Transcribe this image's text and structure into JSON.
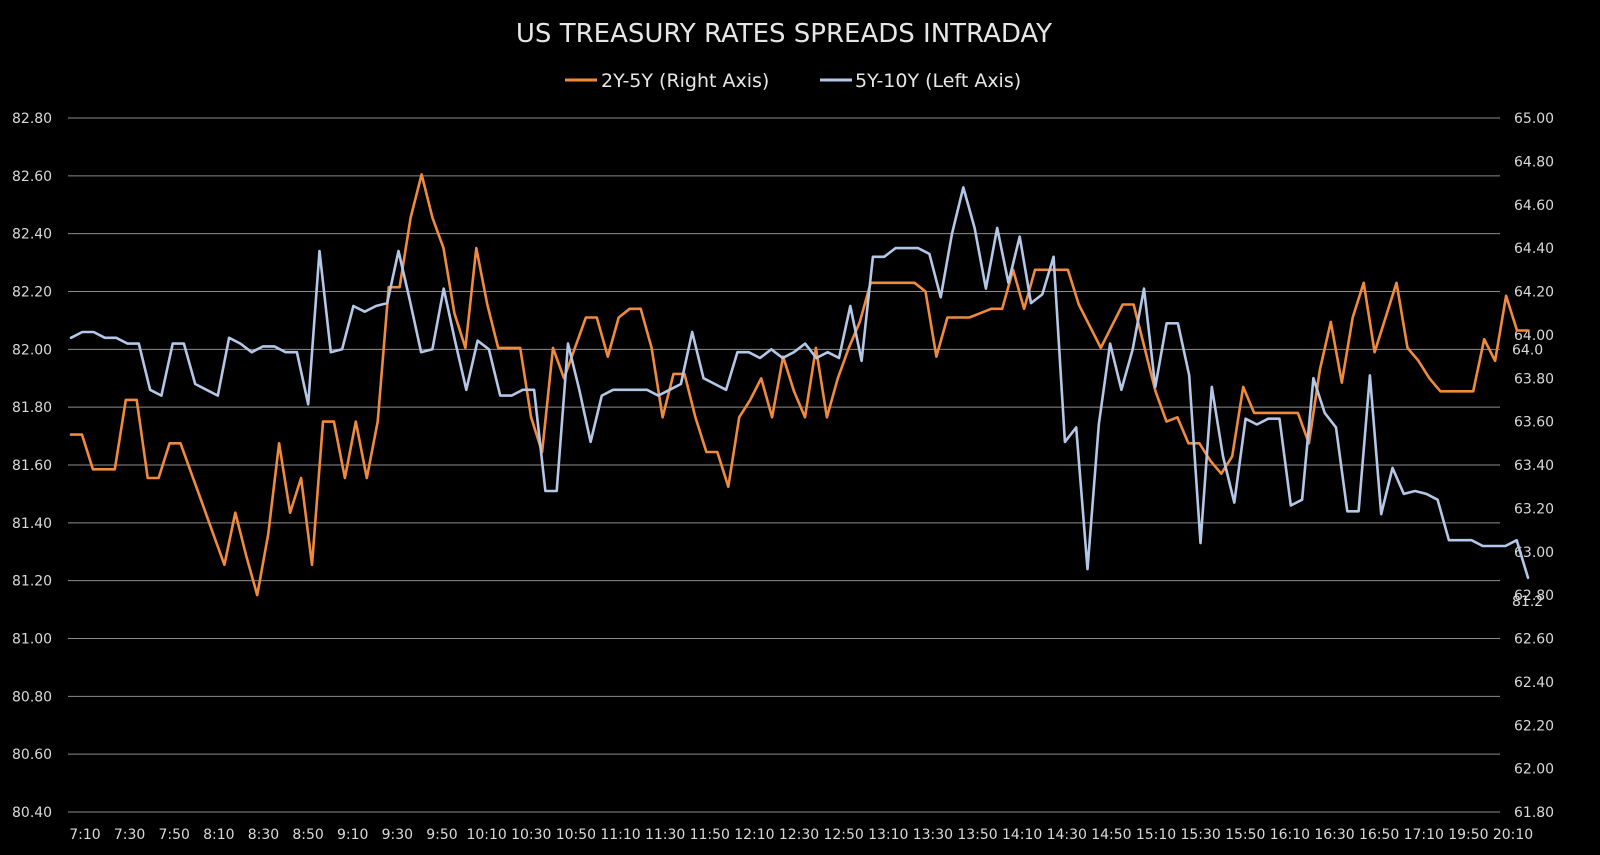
{
  "chart_data": {
    "type": "line",
    "title": "US TREASURY RATES SPREADS INTRADAY",
    "colors": {
      "2Y-5Y": "#f08a3c",
      "5Y-10Y": "#b4c7e7",
      "background": "#000000",
      "grid": "#8c8c8c"
    },
    "left_axis": {
      "ylim": [
        80.4,
        82.8
      ],
      "ticks": [
        "80.40",
        "80.60",
        "80.80",
        "81.00",
        "81.20",
        "81.40",
        "81.60",
        "81.80",
        "82.00",
        "82.20",
        "82.40",
        "82.60",
        "82.80"
      ]
    },
    "right_axis": {
      "ylim": [
        61.8,
        65.0
      ],
      "ticks": [
        "61.80",
        "62.00",
        "62.20",
        "62.40",
        "62.60",
        "62.80",
        "63.00",
        "63.20",
        "63.40",
        "63.60",
        "63.80",
        "64.00",
        "64.20",
        "64.40",
        "64.60",
        "64.80",
        "65.00"
      ]
    },
    "x_tick_labels": [
      "7:10",
      "7:30",
      "7:50",
      "8:10",
      "8:30",
      "8:50",
      "9:10",
      "9:30",
      "9:50",
      "10:10",
      "10:30",
      "10:50",
      "11:10",
      "11:30",
      "11:50",
      "12:10",
      "12:30",
      "12:50",
      "13:10",
      "13:30",
      "13:50",
      "14:10",
      "14:30",
      "14:50",
      "15:10",
      "15:30",
      "15:50",
      "16:10",
      "16:30",
      "16:50",
      "17:10",
      "19:50",
      "20:10"
    ],
    "series": [
      {
        "name": "2Y-5Y",
        "legend_label": "2Y-5Y (Right Axis)",
        "axis": "right",
        "last_label": "64.0",
        "values": [
          63.54,
          63.54,
          63.38,
          63.38,
          63.38,
          63.7,
          63.7,
          63.34,
          63.34,
          63.5,
          63.5,
          63.36,
          63.22,
          63.08,
          62.94,
          63.18,
          62.98,
          62.8,
          63.08,
          63.5,
          63.18,
          63.34,
          62.94,
          63.6,
          63.6,
          63.34,
          63.6,
          63.34,
          63.6,
          64.22,
          64.22,
          64.54,
          64.74,
          64.54,
          64.4,
          64.1,
          63.94,
          64.4,
          64.14,
          63.94,
          63.94,
          63.94,
          63.62,
          63.46,
          63.94,
          63.8,
          63.94,
          64.08,
          64.08,
          63.9,
          64.08,
          64.12,
          64.12,
          63.94,
          63.62,
          63.82,
          63.82,
          63.62,
          63.46,
          63.46,
          63.3,
          63.62,
          63.7,
          63.8,
          63.62,
          63.9,
          63.74,
          63.62,
          63.94,
          63.62,
          63.8,
          63.94,
          64.06,
          64.24,
          64.24,
          64.24,
          64.24,
          64.24,
          64.2,
          63.9,
          64.08,
          64.08,
          64.08,
          64.1,
          64.12,
          64.12,
          64.3,
          64.12,
          64.3,
          64.3,
          64.3,
          64.3,
          64.14,
          64.04,
          63.94,
          64.04,
          64.14,
          64.14,
          63.94,
          63.74,
          63.6,
          63.62,
          63.5,
          63.5,
          63.42,
          63.36,
          63.44,
          63.76,
          63.64,
          63.64,
          63.64,
          63.64,
          63.64,
          63.5,
          63.84,
          64.06,
          63.78,
          64.08,
          64.24,
          63.92,
          64.08,
          64.24,
          63.94,
          63.88,
          63.8,
          63.74,
          63.74,
          63.74,
          63.74,
          63.98,
          63.88,
          64.18,
          64.02,
          64.02
        ]
      },
      {
        "name": "5Y-10Y",
        "legend_label": "5Y-10Y (Left Axis)",
        "axis": "left",
        "last_label": "81.2",
        "values": [
          82.04,
          82.06,
          82.06,
          82.04,
          82.04,
          82.02,
          82.02,
          81.86,
          81.84,
          82.02,
          82.02,
          81.88,
          81.86,
          81.84,
          82.04,
          82.02,
          81.99,
          82.01,
          82.01,
          81.99,
          81.99,
          81.81,
          82.34,
          81.99,
          82.0,
          82.15,
          82.13,
          82.15,
          82.16,
          82.34,
          82.17,
          81.99,
          82.0,
          82.21,
          82.03,
          81.86,
          82.03,
          82.0,
          81.84,
          81.84,
          81.86,
          81.86,
          81.51,
          81.51,
          82.02,
          81.86,
          81.68,
          81.84,
          81.86,
          81.86,
          81.86,
          81.86,
          81.84,
          81.86,
          81.88,
          82.06,
          81.9,
          81.88,
          81.86,
          81.99,
          81.99,
          81.97,
          82.0,
          81.97,
          81.99,
          82.02,
          81.97,
          81.99,
          81.97,
          82.15,
          81.96,
          82.32,
          82.32,
          82.35,
          82.35,
          82.35,
          82.33,
          82.18,
          82.4,
          82.56,
          82.42,
          82.21,
          82.42,
          82.23,
          82.39,
          82.16,
          82.19,
          82.32,
          81.68,
          81.73,
          81.24,
          81.74,
          82.02,
          81.86,
          82.0,
          82.21,
          81.87,
          82.09,
          82.09,
          81.91,
          81.33,
          81.87,
          81.63,
          81.47,
          81.76,
          81.74,
          81.76,
          81.76,
          81.46,
          81.48,
          81.9,
          81.78,
          81.73,
          81.44,
          81.44,
          81.91,
          81.43,
          81.59,
          81.5,
          81.51,
          81.5,
          81.48,
          81.34,
          81.34,
          81.34,
          81.32,
          81.32,
          81.32,
          81.34,
          81.21
        ]
      }
    ]
  }
}
